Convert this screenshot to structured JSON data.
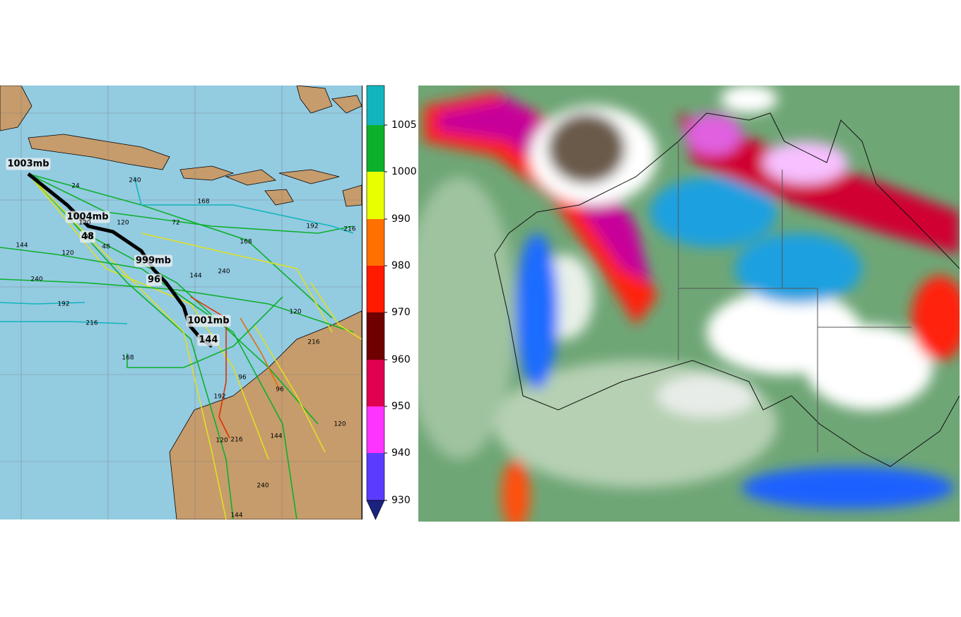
{
  "track_map": {
    "center_labels": [
      "1003mb",
      "1004mb",
      "48",
      "999mb",
      "96",
      "1001mb",
      "144"
    ],
    "lead_labels": [
      "24",
      "240",
      "168",
      "192",
      "216",
      "72",
      "144",
      "120",
      "96",
      "48",
      "240",
      "192",
      "216",
      "240",
      "168",
      "144",
      "120",
      "216",
      "120",
      "96",
      "192",
      "216",
      "120",
      "120",
      "144",
      "240",
      "144",
      "168",
      "96",
      "120"
    ]
  },
  "colorbar": {
    "ticks": [
      930,
      940,
      950,
      960,
      970,
      980,
      990,
      1000,
      1005
    ],
    "colors": [
      "#5b3cff",
      "#ff33ff",
      "#e0004f",
      "#700000",
      "#ff1a00",
      "#ff7000",
      "#e8ff00",
      "#0db02b",
      "#12b5bd"
    ],
    "under_color": "#1a237e"
  }
}
